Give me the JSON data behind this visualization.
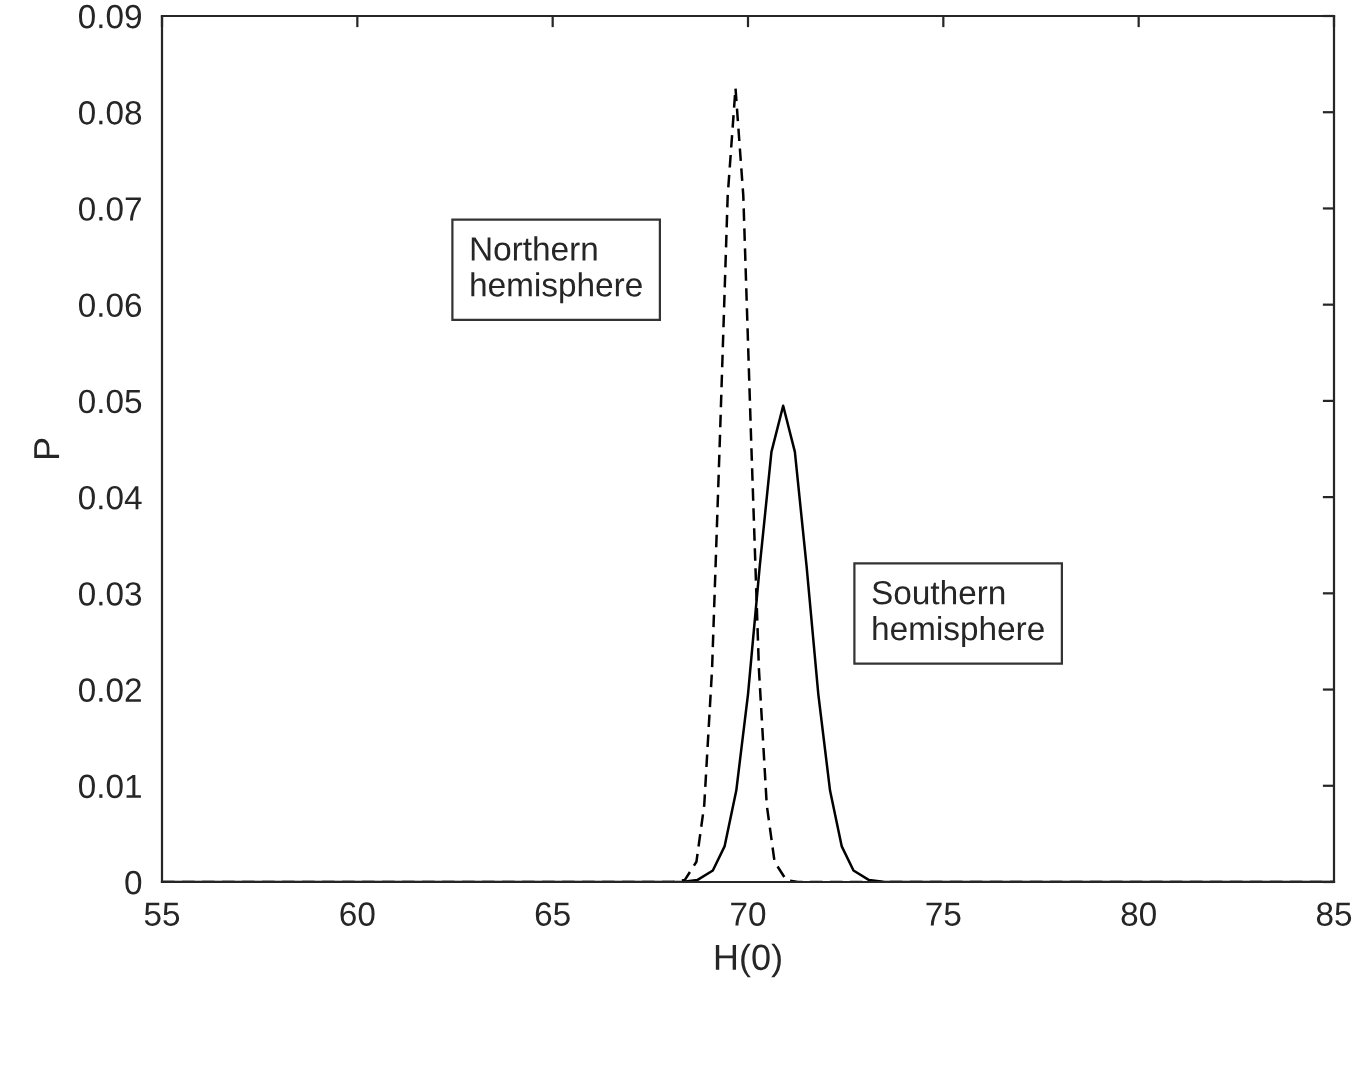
{
  "chart_data": {
    "type": "line",
    "xlabel": "H(0)",
    "ylabel": "P",
    "series": [
      {
        "color": "#000000",
        "line_style": "dashed",
        "x": [
          55,
          68.08,
          68.38,
          68.68,
          68.88,
          69.08,
          69.28,
          69.48,
          69.68,
          69.88,
          70.08,
          70.28,
          70.48,
          70.68,
          70.98,
          71.28,
          85
        ],
        "values": [
          0,
          0,
          0.0002,
          0.0021,
          0.008,
          0.0221,
          0.046,
          0.0713,
          0.0825,
          0.0713,
          0.046,
          0.0221,
          0.008,
          0.0021,
          0.0002,
          0,
          0
        ]
      },
      {
        "color": "#000000",
        "line_style": "solid",
        "x": [
          55,
          68.3,
          68.7,
          69.1,
          69.4,
          69.7,
          70.0,
          70.3,
          70.6,
          70.9,
          71.2,
          71.5,
          71.8,
          72.1,
          72.4,
          72.7,
          73.1,
          73.5,
          85
        ],
        "values": [
          0,
          0,
          0.0002,
          0.0012,
          0.0037,
          0.0095,
          0.0195,
          0.0328,
          0.0447,
          0.0495,
          0.0447,
          0.0328,
          0.0195,
          0.0095,
          0.0037,
          0.0012,
          0.0002,
          0,
          0
        ]
      }
    ],
    "annotations": [
      "Northern\nhemisphere",
      "Southern\nhemisphere"
    ],
    "xlim": [
      55,
      85
    ],
    "xticks": [
      55,
      60,
      65,
      70,
      75,
      80,
      85
    ],
    "ylim": [
      0,
      0.09
    ],
    "yticks": [
      0,
      0.01,
      0.02,
      0.03,
      0.04,
      0.05,
      0.06,
      0.07,
      0.08,
      0.09
    ],
    "grid": false
  }
}
